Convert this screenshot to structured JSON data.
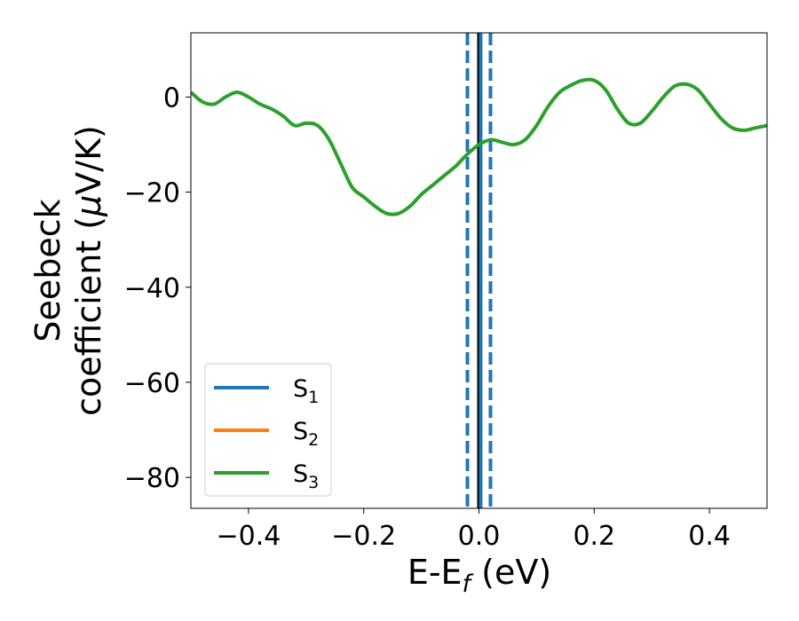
{
  "chart_data": {
    "type": "line",
    "title": "",
    "xlabel": {
      "main": "E-E",
      "sub": "f",
      "suffix": " (eV)"
    },
    "ylabel": {
      "line1": "Seebeck",
      "line2_prefix": "coefficient  (",
      "line2_mu": "μ",
      "line2_suffix": "V/K)"
    },
    "xlim": [
      -0.5,
      0.5
    ],
    "ylim": [
      -86.5,
      13.5
    ],
    "xticks": [
      -0.4,
      -0.2,
      0.0,
      0.2,
      0.4
    ],
    "xtick_labels": [
      "−0.4",
      "−0.2",
      "0.0",
      "0.2",
      "0.4"
    ],
    "yticks": [
      0,
      -20,
      -40,
      -60,
      -80
    ],
    "ytick_labels": [
      "0",
      "−20",
      "−40",
      "−60",
      "−80"
    ],
    "grid": false,
    "legend_position": "lower-left",
    "vertical_lines": [
      {
        "x": -0.02,
        "style": "dashed",
        "color": "#1f77b4"
      },
      {
        "x": 0.02,
        "style": "dashed",
        "color": "#1f77b4"
      },
      {
        "x": 0.0,
        "style": "solid",
        "color": "#000000"
      },
      {
        "x": 0.003,
        "style": "solid",
        "color": "#1f77b4"
      }
    ],
    "series": [
      {
        "name": "S",
        "sub": "1",
        "color": "#1f77b4",
        "x": [],
        "y": []
      },
      {
        "name": "S",
        "sub": "2",
        "color": "#ff7f0e",
        "x": [],
        "y": []
      },
      {
        "name": "S",
        "sub": "3",
        "color": "#2ca02c",
        "x": [
          -0.5,
          -0.48,
          -0.46,
          -0.44,
          -0.42,
          -0.4,
          -0.38,
          -0.36,
          -0.34,
          -0.32,
          -0.3,
          -0.28,
          -0.26,
          -0.24,
          -0.22,
          -0.2,
          -0.18,
          -0.16,
          -0.14,
          -0.12,
          -0.1,
          -0.08,
          -0.06,
          -0.04,
          -0.02,
          0.0,
          0.02,
          0.04,
          0.06,
          0.08,
          0.1,
          0.12,
          0.14,
          0.16,
          0.18,
          0.2,
          0.22,
          0.24,
          0.26,
          0.28,
          0.3,
          0.32,
          0.34,
          0.36,
          0.38,
          0.4,
          0.42,
          0.44,
          0.46,
          0.48,
          0.5
        ],
        "y": [
          1,
          -1,
          -1.5,
          0,
          1,
          0,
          -1.5,
          -2.5,
          -4,
          -6,
          -5.5,
          -6,
          -9,
          -14,
          -19,
          -21,
          -23,
          -24.5,
          -24.5,
          -23,
          -20.5,
          -18.5,
          -16.5,
          -14.5,
          -12,
          -10,
          -9,
          -9.5,
          -10,
          -9,
          -6,
          -2,
          1,
          2.5,
          3.5,
          3.5,
          1.5,
          -2.5,
          -5.5,
          -5.5,
          -3,
          0,
          2.3,
          2.7,
          1.5,
          -1.5,
          -4.5,
          -6.5,
          -7,
          -6.5,
          -6
        ]
      }
    ]
  }
}
